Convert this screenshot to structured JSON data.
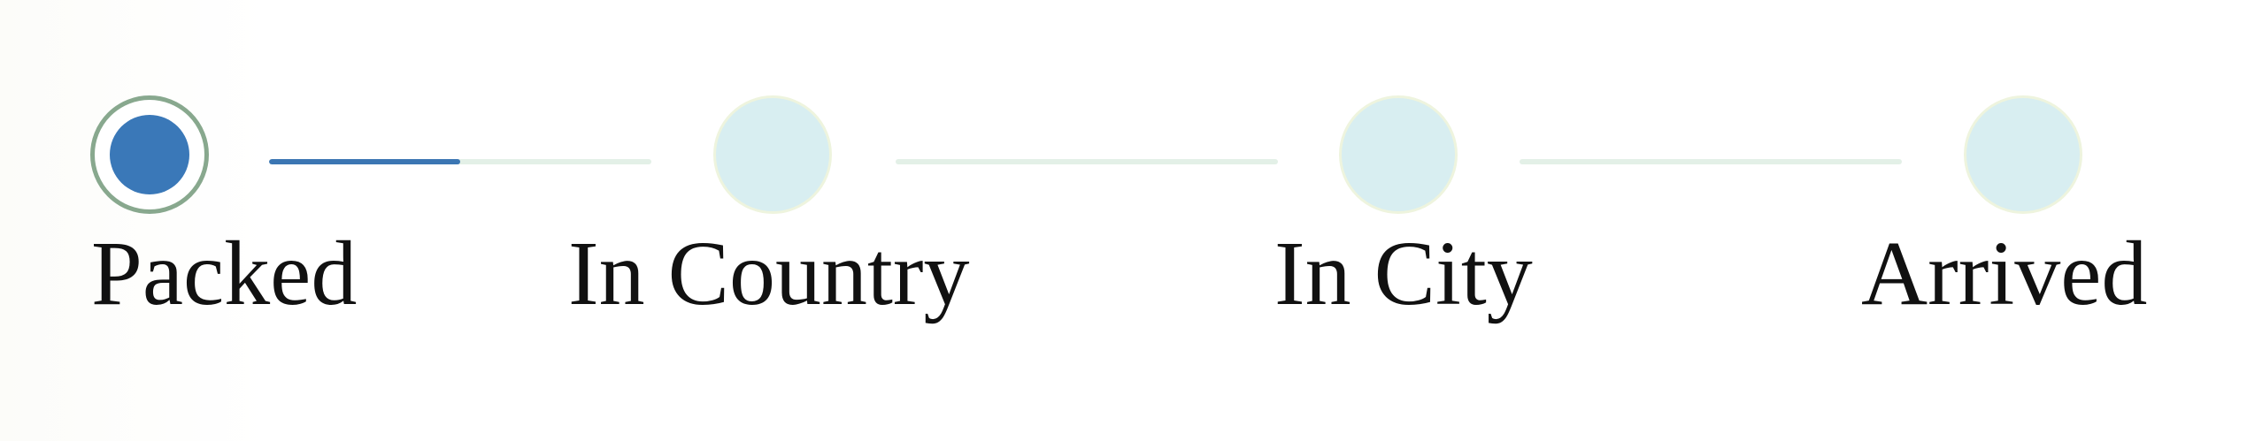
{
  "tracker": {
    "steps": [
      {
        "label": "Packed",
        "state": "current"
      },
      {
        "label": "In Country",
        "state": "pending"
      },
      {
        "label": "In City",
        "state": "pending"
      },
      {
        "label": "Arrived",
        "state": "pending"
      }
    ],
    "connectors": [
      {
        "progress": 0.5
      },
      {
        "progress": 0
      },
      {
        "progress": 0
      }
    ]
  },
  "colors": {
    "accent": "#3a78b8",
    "pending_marker": "#d8eef1",
    "connector_track": "#e3f0e7",
    "active_ring": "#88a88e"
  }
}
